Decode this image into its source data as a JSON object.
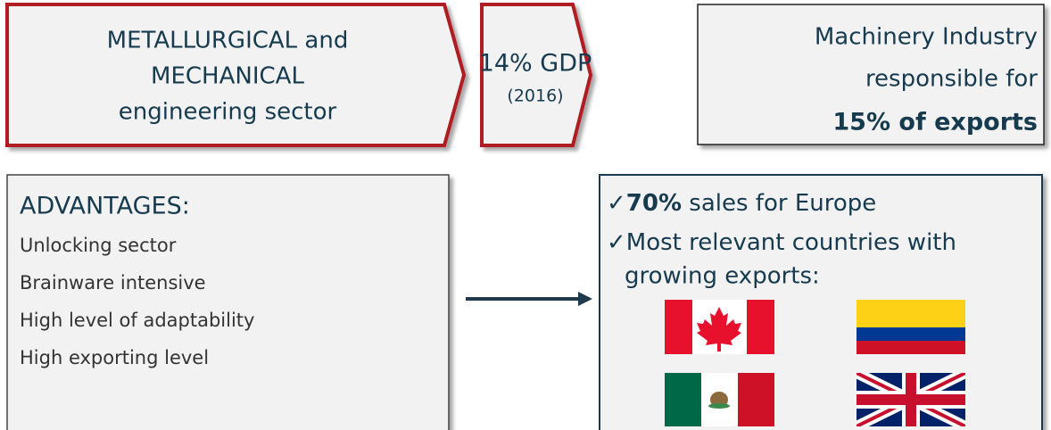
{
  "sector": {
    "lines": [
      "METALLURGICAL and",
      "MECHANICAL",
      "engineering sector"
    ]
  },
  "gdp": {
    "value": "14% GDP",
    "year": "(2016)"
  },
  "exports": {
    "lines": [
      "Machinery Industry",
      "responsible for"
    ],
    "highlight": "15% of exports"
  },
  "advantages": {
    "title": "ADVANTAGES:",
    "items": [
      "Unlocking sector",
      "Brainware intensive",
      "High level of adaptability",
      "High exporting level"
    ]
  },
  "highlights": {
    "items": [
      {
        "check": "✓",
        "bold": "70%",
        "text": " sales for Europe"
      },
      {
        "check": "✓",
        "text": "Most relevant countries with",
        "continuation": "growing exports:"
      }
    ]
  }
}
